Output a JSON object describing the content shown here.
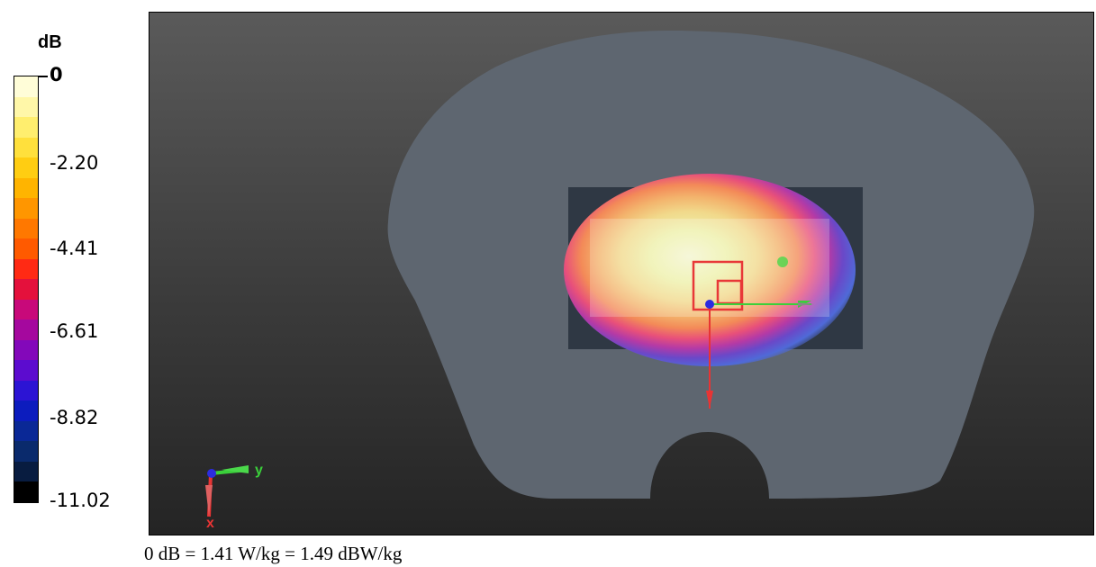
{
  "colorbar": {
    "unit": "dB",
    "ticks": [
      "0",
      "-2.20",
      "-4.41",
      "-6.61",
      "-8.82",
      "-11.02"
    ],
    "colors": [
      "#fffdd8",
      "#fff7a8",
      "#ffee6e",
      "#ffe03c",
      "#ffcd12",
      "#ffb400",
      "#ff9600",
      "#ff7800",
      "#ff5a00",
      "#ff2a14",
      "#e4113c",
      "#c8097a",
      "#a5089e",
      "#8308ba",
      "#5c0ccf",
      "#2c14d4",
      "#0c1cbe",
      "#0a2896",
      "#0a2a6c",
      "#081c40",
      "#000000"
    ]
  },
  "scene": {
    "axis_y_label": "y",
    "axis_x_label": "x",
    "colors": {
      "phantom": "#5e6670",
      "scan_area": "#2b3440",
      "zoom_scan": "#e83838",
      "axis_x": "#e83434",
      "axis_y": "#3ad03a",
      "axis_z": "#2c2ce0"
    }
  },
  "caption": "0 dB = 1.41 W/kg = 1.49 dBW/kg"
}
